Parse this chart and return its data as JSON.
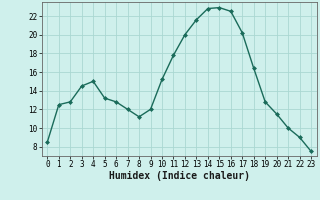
{
  "x": [
    0,
    1,
    2,
    3,
    4,
    5,
    6,
    7,
    8,
    9,
    10,
    11,
    12,
    13,
    14,
    15,
    16,
    17,
    18,
    19,
    20,
    21,
    22,
    23
  ],
  "y": [
    8.5,
    12.5,
    12.8,
    14.5,
    15.0,
    13.2,
    12.8,
    12.0,
    11.2,
    12.0,
    15.2,
    17.8,
    20.0,
    21.6,
    22.8,
    22.9,
    22.5,
    20.2,
    16.4,
    12.8,
    11.5,
    10.0,
    9.0,
    7.5
  ],
  "xlabel": "Humidex (Indice chaleur)",
  "ylabel_ticks": [
    8,
    10,
    12,
    14,
    16,
    18,
    20,
    22
  ],
  "xlim": [
    -0.5,
    23.5
  ],
  "ylim": [
    7.0,
    23.5
  ],
  "bg_color": "#cff0ec",
  "grid_color": "#aad8d2",
  "line_color": "#1a6b5a",
  "marker_color": "#1a6b5a",
  "xlabel_fontsize": 7.0,
  "tick_fontsize": 5.5
}
